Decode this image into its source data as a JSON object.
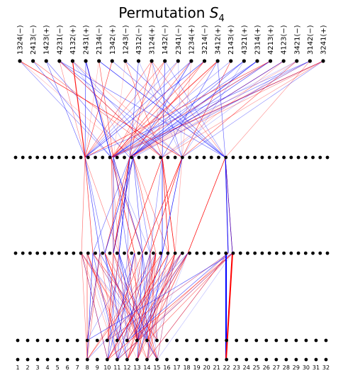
{
  "title": {
    "prefix": "Permutation ",
    "symbol": "S",
    "subscript": "4"
  },
  "permutations": [
    "1324(−)",
    "2413(−)",
    "1423(+)",
    "4231(−)",
    "4132(+)",
    "2431(+)",
    "2134(−)",
    "1342(+)",
    "1243(−)",
    "4312(−)",
    "3124(+)",
    "1432(−)",
    "2341(−)",
    "1234(+)",
    "3214(−)",
    "3412(+)",
    "2143(+)",
    "4321(+)",
    "2314(+)",
    "4213(+)",
    "4123(−)",
    "3421(−)",
    "3142(−)",
    "3241(+)"
  ],
  "bottom_labels": [
    "1",
    "2",
    "3",
    "4",
    "5",
    "6",
    "7",
    "8",
    "9",
    "10",
    "11",
    "12",
    "13",
    "14",
    "15",
    "16",
    "17",
    "18",
    "19",
    "20",
    "21",
    "22",
    "23",
    "24",
    "25",
    "26",
    "27",
    "28",
    "29",
    "30",
    "31",
    "32"
  ],
  "colors": {
    "positive_edge": "#ff0000",
    "negative_edge": "#0000ff",
    "node": "#000000"
  },
  "edge_count_approx": 600
}
